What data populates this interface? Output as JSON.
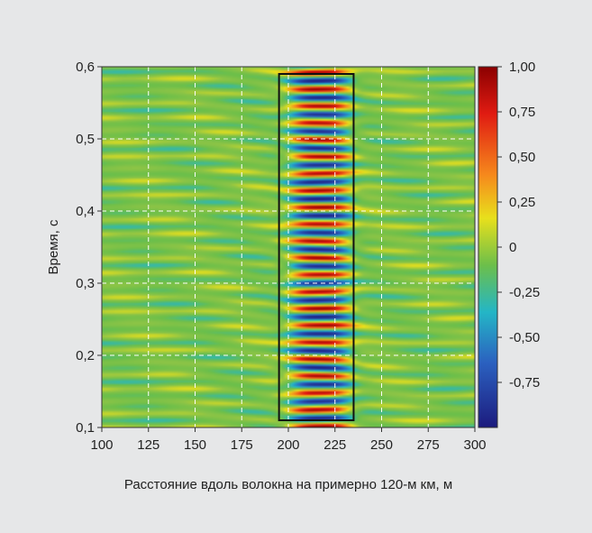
{
  "chart_data": {
    "type": "heatmap",
    "title": "",
    "xlabel": "Расстояние вдоль волокна на примерно 120-м км, м",
    "ylabel": "Время, с",
    "xlim": [
      100,
      300
    ],
    "ylim": [
      0.1,
      0.6
    ],
    "x_ticks": [
      100,
      125,
      150,
      175,
      200,
      225,
      250,
      275,
      300
    ],
    "x_tick_labels": [
      "100",
      "125",
      "150",
      "175",
      "200",
      "225",
      "250",
      "275",
      "300"
    ],
    "y_ticks": [
      0.1,
      0.2,
      0.3,
      0.4,
      0.5,
      0.6
    ],
    "y_tick_labels": [
      "0,1",
      "0,2",
      "0,3",
      "0,4",
      "0,5",
      "0,6"
    ],
    "grid": true,
    "colorbar": {
      "range": [
        -1.0,
        1.0
      ],
      "ticks": [
        1.0,
        0.75,
        0.5,
        0.25,
        0,
        -0.25,
        -0.5,
        -0.75
      ],
      "tick_labels": [
        "1,00",
        "0,75",
        "0,50",
        "0,25",
        "0",
        "-0,25",
        "-0,50",
        "-0,75"
      ],
      "colormap": "jet"
    },
    "highlight_box": {
      "x": [
        195,
        235
      ],
      "y": [
        0.11,
        0.59
      ]
    },
    "signal_band": {
      "x_center": 217,
      "x_half_width": 18,
      "time_period": 0.0235,
      "amplitude": 0.95
    },
    "background_amplitude": 0.3
  }
}
